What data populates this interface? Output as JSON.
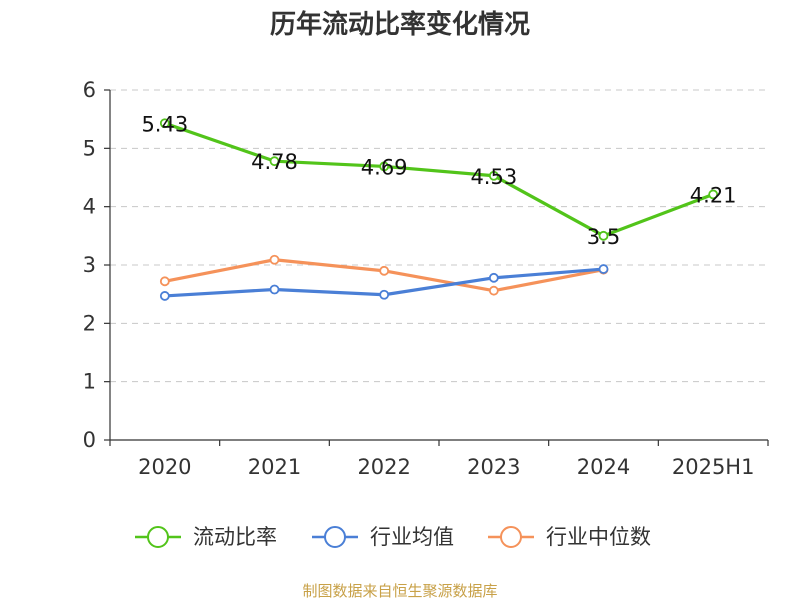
{
  "chart_data": {
    "type": "line",
    "title": "历年流动比率变化情况",
    "categories": [
      "2020",
      "2021",
      "2022",
      "2023",
      "2024",
      "2025H1"
    ],
    "ylim": [
      0,
      6
    ],
    "yticks": [
      "0",
      "1",
      "2",
      "3",
      "4",
      "5",
      "6"
    ],
    "grid": true,
    "legend_position": "bottom",
    "series": [
      {
        "name": "流动比率",
        "color": "#52c41a",
        "values": [
          5.43,
          4.78,
          4.69,
          4.53,
          3.5,
          4.21
        ],
        "labels": [
          "5.43",
          "4.78",
          "4.69",
          "4.53",
          "3.5",
          "4.21"
        ]
      },
      {
        "name": "行业均值",
        "color": "#4a7fd6",
        "values": [
          2.47,
          2.58,
          2.49,
          2.78,
          2.93,
          null
        ]
      },
      {
        "name": "行业中位数",
        "color": "#f5925a",
        "values": [
          2.72,
          3.09,
          2.9,
          2.56,
          2.92,
          null
        ]
      }
    ],
    "source": "制图数据来自恒生聚源数据库"
  }
}
